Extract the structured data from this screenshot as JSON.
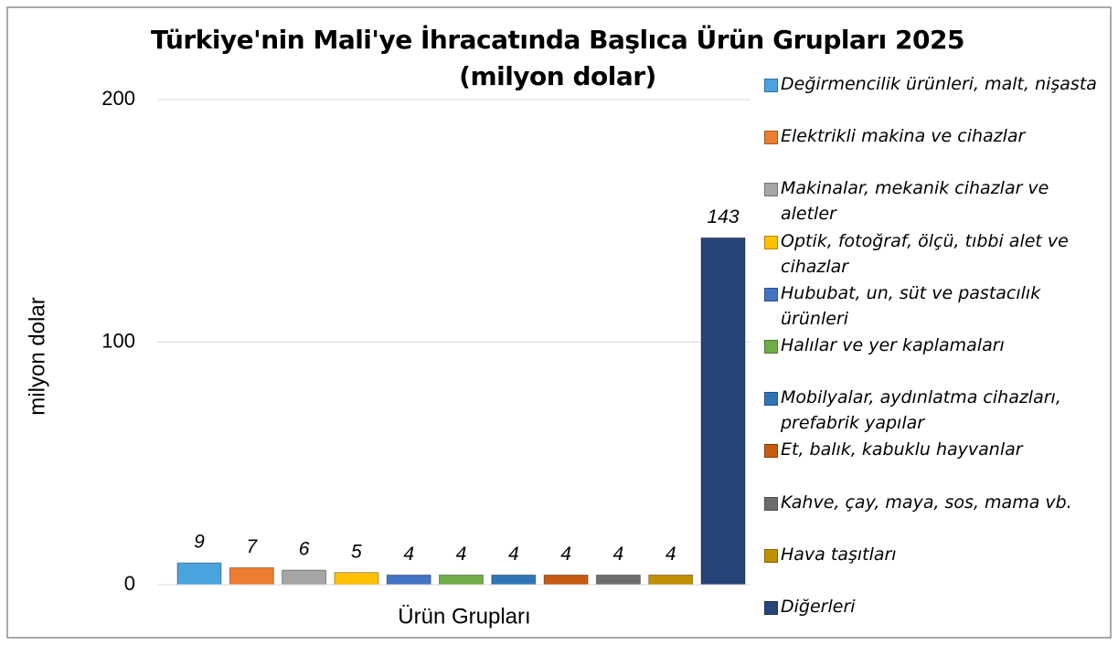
{
  "chart_data": {
    "type": "bar",
    "title": "Türkiye'nin Mali'ye İhracatında Başlıca Ürün Grupları 2025 (milyon dolar)",
    "x_label": "Ürün Grupları",
    "y_label": "milyon dolar",
    "ylim": [
      0,
      200
    ],
    "yticks": [
      0,
      100,
      200
    ],
    "grid": true,
    "legend": "right",
    "series": [
      {
        "name": "Değirmencilik ürünleri, malt, nişasta",
        "color": "#4aa3df",
        "values": [
          9
        ]
      },
      {
        "name": "Elektrikli makina ve cihazlar",
        "color": "#ed7d31",
        "values": [
          7
        ]
      },
      {
        "name": "Makinalar, mekanik cihazlar ve aletler",
        "color": "#a5a5a5",
        "values": [
          6
        ]
      },
      {
        "name": "Optik, fotoğraf, ölçü, tıbbi alet ve cihazlar",
        "color": "#ffc000",
        "values": [
          5
        ]
      },
      {
        "name": "Hububat, un, süt ve pastacılık ürünleri",
        "color": "#4472c4",
        "values": [
          4
        ]
      },
      {
        "name": "Halılar ve yer kaplamaları",
        "color": "#70ad47",
        "values": [
          4
        ]
      },
      {
        "name": "Mobilyalar, aydınlatma cihazları, prefabrik yapılar",
        "color": "#2e75b6",
        "values": [
          4
        ]
      },
      {
        "name": "Et, balık, kabuklu hayvanlar",
        "color": "#c55a11",
        "values": [
          4
        ]
      },
      {
        "name": "Kahve, çay, maya, sos, mama vb.",
        "color": "#6d6d6d",
        "values": [
          4
        ]
      },
      {
        "name": "Hava taşıtları",
        "color": "#bf9000",
        "values": [
          4
        ]
      },
      {
        "name": "Diğerleri",
        "color": "#264478",
        "values": [
          143
        ]
      }
    ]
  }
}
